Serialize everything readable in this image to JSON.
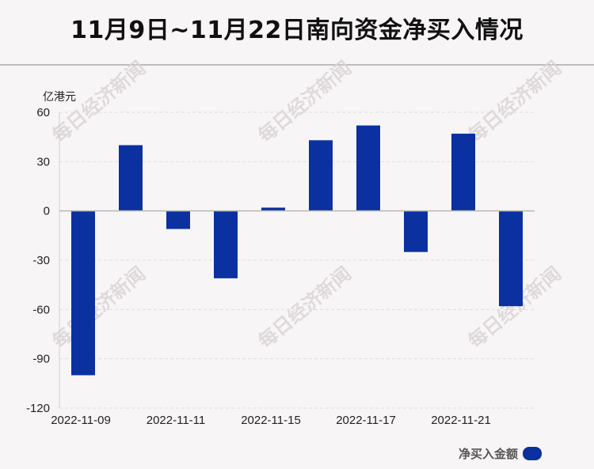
{
  "title": "11月9日~11月22日南向资金净买入情况",
  "watermark": "每日经济新闻",
  "chart_data": {
    "type": "bar",
    "unit_label": "亿港元",
    "categories": [
      "2022-11-09",
      "",
      "2022-11-11",
      "",
      "2022-11-15",
      "",
      "2022-11-17",
      "",
      "2022-11-21",
      ""
    ],
    "series": [
      {
        "name": "净买入金额",
        "values": [
          -100,
          40,
          -11,
          -41,
          2,
          43,
          52,
          -25,
          47,
          -58
        ],
        "color": "#0b31a0"
      }
    ],
    "ylim": [
      -120,
      60
    ],
    "yticks": [
      60,
      30,
      0,
      -30,
      -60,
      -90,
      -120
    ],
    "xtick_labels": [
      "2022-11-09",
      "2022-11-11",
      "2022-11-15",
      "2022-11-17",
      "2022-11-21"
    ],
    "grid": true,
    "legend_position": "bottom-right"
  }
}
